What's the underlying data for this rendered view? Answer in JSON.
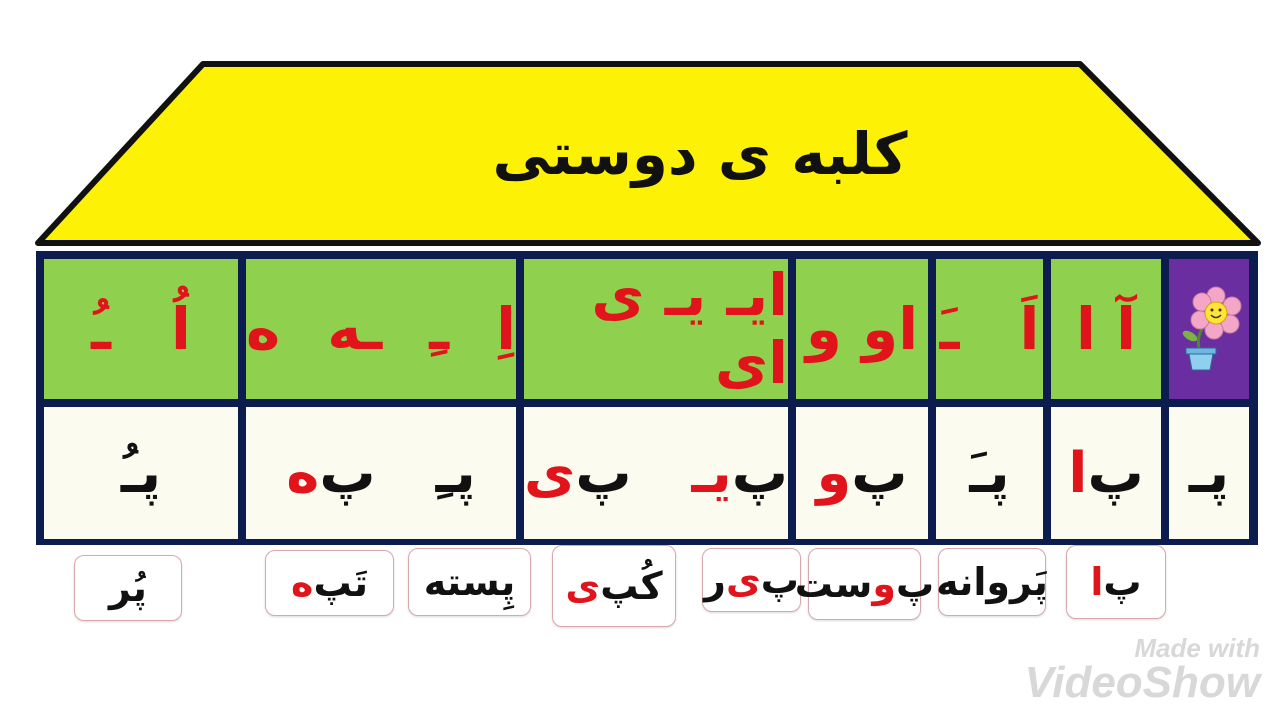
{
  "title": "کلبه ی دوستی",
  "colors": {
    "roof": "#fdf205",
    "header_bg": "#8fd14f",
    "row_bg": "#fcfbef",
    "border": "#0d1c4f",
    "accent_red": "#e2141b",
    "icon_cell": "#6a2ea0"
  },
  "icon": "smiling-flower-pot-icon",
  "header": [
    {
      "segments": [
        {
          "text": "اُ",
          "red": true
        },
        {
          "gap": true
        },
        {
          "text": "ـُ",
          "red": true
        }
      ]
    },
    {
      "segments": [
        {
          "text": "اِ",
          "red": true
        },
        {
          "gap": true
        },
        {
          "text": "ـِ",
          "red": true
        },
        {
          "gap": true
        },
        {
          "text": "ـه",
          "red": true
        },
        {
          "gap": true
        },
        {
          "text": "ه",
          "red": true
        }
      ]
    },
    {
      "segments": [
        {
          "text": "ایـ یـ ی ای",
          "red": true
        }
      ]
    },
    {
      "segments": [
        {
          "text": "او و",
          "red": true
        }
      ]
    },
    {
      "segments": [
        {
          "text": "اَ",
          "red": true
        },
        {
          "gap": true
        },
        {
          "text": "ـَ",
          "red": true
        }
      ]
    },
    {
      "segments": [
        {
          "text": "آ ا",
          "red": true
        }
      ]
    }
  ],
  "syllables": [
    {
      "segments": [
        {
          "text": "پـُ",
          "red": false
        }
      ]
    },
    {
      "segments": [
        {
          "text": "پـِ",
          "red": false
        },
        {
          "gap": true
        },
        {
          "text": "پ",
          "red": false
        },
        {
          "text": "ه",
          "red": true
        }
      ]
    },
    {
      "segments": [
        {
          "text": "پ",
          "red": false
        },
        {
          "text": "یـ",
          "red": true
        },
        {
          "gap": true
        },
        {
          "text": "پ",
          "red": false
        },
        {
          "text": "ی",
          "red": true
        }
      ]
    },
    {
      "segments": [
        {
          "text": "پ",
          "red": false
        },
        {
          "text": "و",
          "red": true
        }
      ]
    },
    {
      "segments": [
        {
          "text": "پـَ",
          "red": false
        }
      ]
    },
    {
      "segments": [
        {
          "text": "پ",
          "red": false
        },
        {
          "text": "ا",
          "red": true
        }
      ]
    },
    {
      "segments": [
        {
          "text": "پـ",
          "red": false
        }
      ]
    }
  ],
  "words": [
    {
      "segments": [
        {
          "text": "پُر",
          "red": false
        }
      ]
    },
    {
      "segments": [
        {
          "text": "تَپ",
          "red": false
        },
        {
          "text": "ه",
          "red": true
        }
      ]
    },
    {
      "segments": [
        {
          "text": "پِسته",
          "red": false
        }
      ]
    },
    {
      "segments": [
        {
          "text": "کُپ",
          "red": false
        },
        {
          "text": "ی",
          "red": true
        }
      ]
    },
    {
      "segments": [
        {
          "text": "پ",
          "red": false
        },
        {
          "text": "ی",
          "red": true
        },
        {
          "text": "ر",
          "red": false
        }
      ]
    },
    {
      "segments": [
        {
          "text": "پ",
          "red": false
        },
        {
          "text": "و",
          "red": true
        },
        {
          "text": "ست",
          "red": false
        }
      ]
    },
    {
      "segments": [
        {
          "text": "پَروانه",
          "red": false
        }
      ]
    },
    {
      "segments": [
        {
          "text": "پ",
          "red": false
        },
        {
          "text": "ا",
          "red": true
        }
      ]
    }
  ],
  "watermark": {
    "line1": "Made with",
    "line2": "VideoShow"
  }
}
